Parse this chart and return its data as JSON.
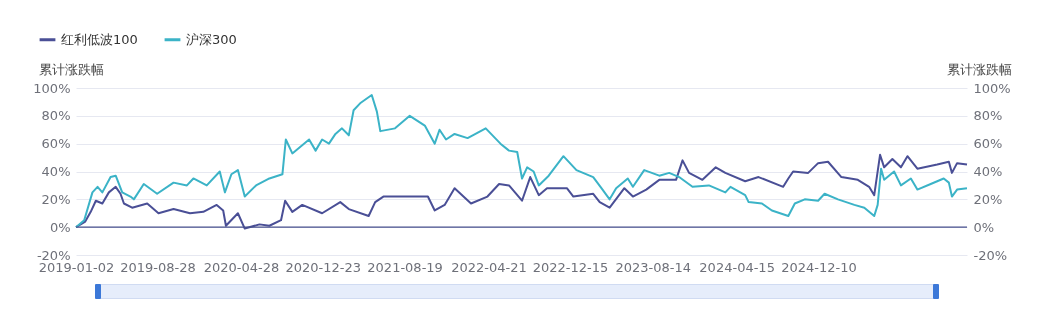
{
  "chart_data": {
    "type": "line",
    "ylabel": "累计涨跌幅",
    "y2label": "累计涨跌幅",
    "xlim": [
      "2019-01-02",
      "2026-02-17"
    ],
    "xticks": [
      "2019-01-02",
      "2019-08-28",
      "2020-04-28",
      "2020-12-23",
      "2021-08-19",
      "2022-04-21",
      "2022-12-15",
      "2023-08-14",
      "2024-04-15",
      "2024-12-10"
    ],
    "ylim": [
      -20,
      100
    ],
    "yticks": [
      {
        "value": -20,
        "label": "-20%"
      },
      {
        "value": 0,
        "label": "0%"
      },
      {
        "value": 20,
        "label": "20%"
      },
      {
        "value": 40,
        "label": "40%"
      },
      {
        "value": 60,
        "label": "60%"
      },
      {
        "value": 80,
        "label": "80%"
      },
      {
        "value": 100,
        "label": "100%"
      }
    ],
    "y2lim": [
      -20,
      100
    ],
    "y2ticks": [
      {
        "value": -20,
        "label": "-20%"
      },
      {
        "value": 0,
        "label": "0%"
      },
      {
        "value": 20,
        "label": "20%"
      },
      {
        "value": 40,
        "label": "40%"
      },
      {
        "value": 60,
        "label": "60%"
      },
      {
        "value": 80,
        "label": "80%"
      },
      {
        "value": 100,
        "label": "100%"
      }
    ],
    "grid": "y",
    "legend": "top left",
    "marker": "none",
    "line_style": "solid",
    "ref_lines": [
      {
        "axis": "y",
        "value": 0,
        "label": null,
        "color": "#464f8c"
      }
    ],
    "series": [
      {
        "name": "红利低波100",
        "color": "#4a4f96",
        "x": [
          "2019-01-02",
          "2019-01-29",
          "2019-02-14",
          "2019-03-01",
          "2019-03-20",
          "2019-04-08",
          "2019-04-28",
          "2019-05-12",
          "2019-05-22",
          "2019-06-15",
          "2019-07-29",
          "2019-08-31",
          "2019-10-14",
          "2019-12-01",
          "2020-01-09",
          "2020-02-17",
          "2020-03-07",
          "2020-03-15",
          "2020-04-19",
          "2020-05-09",
          "2020-06-21",
          "2020-07-20",
          "2020-08-23",
          "2020-09-04",
          "2020-09-25",
          "2020-10-24",
          "2020-12-21",
          "2021-02-12",
          "2021-03-09",
          "2021-05-06",
          "2021-05-25",
          "2021-06-18",
          "2021-08-20",
          "2021-10-26",
          "2021-11-15",
          "2021-12-14",
          "2022-01-12",
          "2022-03-01",
          "2022-04-18",
          "2022-05-22",
          "2022-06-20",
          "2022-07-28",
          "2022-08-21",
          "2022-09-15",
          "2022-10-09",
          "2022-12-06",
          "2022-12-25",
          "2023-02-21",
          "2023-03-12",
          "2023-04-10",
          "2023-05-23",
          "2023-06-17",
          "2023-07-26",
          "2023-09-02",
          "2023-10-21",
          "2023-11-09",
          "2023-11-28",
          "2024-01-06",
          "2024-02-14",
          "2024-03-13",
          "2024-05-10",
          "2024-06-18",
          "2024-08-29",
          "2024-09-13",
          "2024-09-27",
          "2024-11-10",
          "2024-12-09",
          "2025-01-07",
          "2025-02-15",
          "2025-04-04",
          "2025-05-07",
          "2025-05-22",
          "2025-06-08",
          "2025-06-20",
          "2025-07-14",
          "2025-08-08",
          "2025-08-27",
          "2025-09-25",
          "2025-11-22",
          "2025-12-26",
          "2026-01-04",
          "2026-01-19",
          "2026-02-17"
        ],
        "values": [
          0,
          4,
          11,
          19,
          17,
          25,
          29,
          24,
          17,
          14,
          17,
          10,
          13,
          10,
          11,
          16,
          12,
          1,
          10,
          -1,
          2,
          1,
          5,
          19,
          11,
          16,
          10,
          18,
          13,
          8,
          18,
          22,
          22,
          22,
          12,
          16,
          28,
          17,
          22,
          31,
          30,
          19,
          36,
          23,
          28,
          28,
          22,
          24,
          18,
          14,
          28,
          22,
          27,
          34,
          34,
          48,
          39,
          34,
          43,
          39,
          33,
          36,
          29,
          35,
          40,
          39,
          46,
          47,
          36,
          34,
          29,
          23,
          52,
          43,
          49,
          43,
          51,
          42,
          45,
          47,
          39,
          46,
          45
        ]
      },
      {
        "name": "沪深300",
        "color": "#3bb3c7",
        "x": [
          "2019-01-02",
          "2019-01-26",
          "2019-02-19",
          "2019-03-06",
          "2019-03-20",
          "2019-04-13",
          "2019-04-28",
          "2019-05-17",
          "2019-06-10",
          "2019-06-20",
          "2019-07-19",
          "2019-08-27",
          "2019-10-14",
          "2019-11-22",
          "2019-12-11",
          "2020-01-19",
          "2020-02-26",
          "2020-03-12",
          "2020-03-31",
          "2020-04-19",
          "2020-05-09",
          "2020-06-11",
          "2020-07-20",
          "2020-08-27",
          "2020-09-06",
          "2020-09-25",
          "2020-11-13",
          "2020-12-02",
          "2020-12-21",
          "2021-01-10",
          "2021-01-29",
          "2021-02-17",
          "2021-03-09",
          "2021-03-23",
          "2021-04-11",
          "2021-05-15",
          "2021-05-30",
          "2021-06-09",
          "2021-07-22",
          "2021-09-03",
          "2021-10-17",
          "2021-11-15",
          "2021-11-29",
          "2021-12-18",
          "2022-01-12",
          "2022-02-19",
          "2022-04-13",
          "2022-05-26",
          "2022-06-20",
          "2022-07-14",
          "2022-07-28",
          "2022-08-12",
          "2022-08-31",
          "2022-09-15",
          "2022-10-14",
          "2022-11-26",
          "2023-01-03",
          "2023-02-21",
          "2023-03-17",
          "2023-04-10",
          "2023-04-29",
          "2023-06-02",
          "2023-06-17",
          "2023-07-20",
          "2023-09-02",
          "2023-10-01",
          "2023-10-30",
          "2023-12-08",
          "2024-01-25",
          "2024-03-13",
          "2024-03-28",
          "2024-05-10",
          "2024-05-20",
          "2024-06-28",
          "2024-07-27",
          "2024-09-13",
          "2024-10-02",
          "2024-10-31",
          "2024-12-09",
          "2024-12-28",
          "2025-02-05",
          "2025-03-25",
          "2025-04-23",
          "2025-05-22",
          "2025-06-01",
          "2025-06-11",
          "2025-06-20",
          "2025-07-19",
          "2025-08-08",
          "2025-09-06",
          "2025-09-25",
          "2025-11-03",
          "2025-12-11",
          "2025-12-26",
          "2026-01-04",
          "2026-01-19",
          "2026-02-17"
        ],
        "values": [
          0,
          5,
          25,
          29,
          25,
          36,
          37,
          25,
          22,
          20,
          31,
          24,
          32,
          30,
          35,
          30,
          40,
          25,
          38,
          41,
          22,
          30,
          35,
          38,
          63,
          53,
          63,
          55,
          63,
          60,
          67,
          71,
          66,
          84,
          89,
          95,
          83,
          69,
          71,
          80,
          73,
          60,
          70,
          63,
          67,
          64,
          71,
          60,
          55,
          54,
          35,
          43,
          40,
          30,
          37,
          51,
          41,
          36,
          28,
          20,
          28,
          35,
          29,
          41,
          37,
          39,
          36,
          29,
          30,
          25,
          29,
          23,
          18,
          17,
          12,
          8,
          17,
          20,
          19,
          24,
          20,
          16,
          14,
          8,
          16,
          42,
          34,
          40,
          30,
          35,
          27,
          31,
          35,
          32,
          22,
          27,
          28
        ]
      }
    ]
  }
}
